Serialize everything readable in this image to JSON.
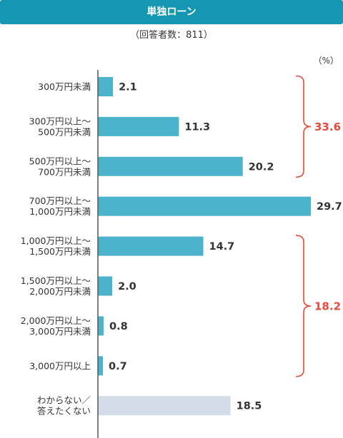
{
  "title": "単独ローン",
  "respondents": "（回答者数：811）",
  "unit": "（%）",
  "colors": {
    "header": "#1597b3",
    "bar": "#4db3cc",
    "bar_other": "#d3dce8",
    "bracket": "#e84a3a",
    "axis": "#555555"
  },
  "chart_data": {
    "type": "bar",
    "orientation": "horizontal",
    "categories": [
      [
        "300万円未満"
      ],
      [
        "300万円以上～",
        "500万円未満"
      ],
      [
        "500万円以上～",
        "700万円未満"
      ],
      [
        "700万円以上～",
        "1,000万円未満"
      ],
      [
        "1,000万円以上～",
        "1,500万円未満"
      ],
      [
        "1,500万円以上～",
        "2,000万円未満"
      ],
      [
        "2,000万円以上～",
        "3,000万円未満"
      ],
      [
        "3,000万円以上"
      ],
      [
        "わからない／",
        "答えたくない"
      ]
    ],
    "values": [
      2.1,
      11.3,
      20.2,
      29.7,
      14.7,
      2.0,
      0.8,
      0.7,
      18.5
    ],
    "value_labels": [
      "2.1",
      "11.3",
      "20.2",
      "29.7",
      "14.7",
      "2.0",
      "0.8",
      "0.7",
      "18.5"
    ],
    "groups": [
      {
        "from": 0,
        "to": 2,
        "label": "33.6"
      },
      {
        "from": 4,
        "to": 7,
        "label": "18.2"
      }
    ],
    "xlim": [
      0,
      29.7
    ]
  }
}
